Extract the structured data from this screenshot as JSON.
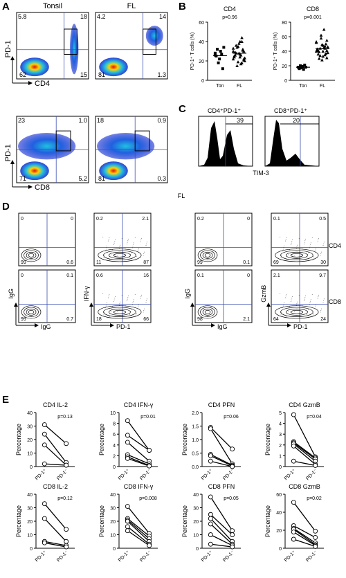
{
  "panels": {
    "A": {
      "label": "A",
      "col_titles": [
        "Tonsil",
        "FL"
      ],
      "plots": [
        {
          "name": "tonsil-cd4",
          "y": "PD-1",
          "x": "CD4",
          "q": [
            "5.8",
            "18",
            "62",
            "15"
          ]
        },
        {
          "name": "fl-cd4",
          "y": "",
          "x": "",
          "q": [
            "4.2",
            "14",
            "81",
            "1.3"
          ]
        },
        {
          "name": "tonsil-cd8",
          "y": "PD-1",
          "x": "CD8",
          "q": [
            "23",
            "1.0",
            "71",
            "5.2"
          ]
        },
        {
          "name": "fl-cd8",
          "y": "",
          "x": "",
          "q": [
            "18",
            "0.9",
            "81",
            "0.3"
          ]
        }
      ]
    },
    "B": {
      "label": "B",
      "ylabel": "PD-1⁺ T cells (%)",
      "plots": [
        {
          "title": "CD4",
          "p": "p=0.96",
          "categories": [
            "Ton",
            "FL"
          ],
          "yticks": [
            "0",
            "20",
            "40",
            "60"
          ],
          "ylim": [
            0,
            60
          ],
          "ton": [
            28,
            25,
            32,
            18,
            22,
            30,
            27,
            12,
            34,
            26
          ],
          "fl": [
            30,
            22,
            18,
            40,
            35,
            28,
            24,
            20,
            32,
            26,
            38,
            15,
            29,
            33,
            21,
            44,
            27,
            19,
            36,
            25,
            23,
            31,
            17,
            28,
            34,
            26,
            22,
            30,
            40,
            24
          ]
        },
        {
          "title": "CD8",
          "p": "p=0.001",
          "categories": [
            "Ton",
            "FL"
          ],
          "yticks": [
            "0",
            "20",
            "40",
            "60",
            "80"
          ],
          "ylim": [
            0,
            80
          ],
          "ton": [
            18,
            16,
            20,
            17,
            19,
            15,
            21,
            18
          ],
          "fl": [
            40,
            55,
            35,
            48,
            62,
            30,
            42,
            38,
            50,
            45,
            28,
            44,
            36,
            52,
            41,
            47,
            33,
            58,
            39,
            43,
            46,
            37,
            70,
            49,
            34,
            41,
            53,
            31,
            44,
            40
          ]
        }
      ]
    },
    "C": {
      "label": "C",
      "titles": [
        "CD4⁺PD-1⁺",
        "CD8⁺PD-1⁺"
      ],
      "values": [
        "39",
        "20"
      ],
      "xlabel": "TIM-3"
    },
    "D": {
      "label": "D",
      "title": "FL",
      "row_labels": [
        "CD4",
        "CD8"
      ],
      "plots": [
        {
          "q": [
            "0",
            "0",
            "99",
            "0.6"
          ],
          "y": "",
          "x": ""
        },
        {
          "q": [
            "0.2",
            "2.1",
            "11",
            "87"
          ],
          "y": "",
          "x": ""
        },
        {
          "q": [
            "0.2",
            "0",
            "99",
            "0.1"
          ],
          "y": "",
          "x": ""
        },
        {
          "q": [
            "0.1",
            "0.5",
            "69",
            "30"
          ],
          "y": "",
          "x": ""
        },
        {
          "q": [
            "0",
            "0.1",
            "99",
            "0.7"
          ],
          "y": "IgG",
          "x": "IgG"
        },
        {
          "q": [
            "0.6",
            "16",
            "18",
            "66"
          ],
          "y": "IFN-γ",
          "x": "PD-1"
        },
        {
          "q": [
            "0.1",
            "0",
            "98",
            "2.1"
          ],
          "y": "IgG",
          "x": "IgG"
        },
        {
          "q": [
            "2.1",
            "9.7",
            "64",
            "24"
          ],
          "y": "GzmB",
          "x": "PD-1"
        }
      ]
    },
    "E": {
      "label": "E",
      "ylabel": "Percentage",
      "xcats": [
        "PD-1⁺",
        "PD-1⁻"
      ],
      "plots": [
        {
          "title": "CD4 IL-2",
          "p": "p=0.13",
          "yticks": [
            "0",
            "10",
            "20",
            "30",
            "40"
          ],
          "ylim": [
            0,
            40
          ],
          "pairs": [
            [
              31,
              17
            ],
            [
              24,
              3
            ],
            [
              16,
              1
            ],
            [
              2,
              1
            ]
          ]
        },
        {
          "title": "CD4 IFN-γ",
          "p": "p=0.01",
          "yticks": [
            "0",
            "2",
            "4",
            "6",
            "8",
            "10"
          ],
          "ylim": [
            0,
            10
          ],
          "pairs": [
            [
              8.5,
              3
            ],
            [
              5.8,
              3
            ],
            [
              4.5,
              1
            ],
            [
              2.2,
              0.5
            ],
            [
              1.8,
              0.2
            ],
            [
              1.5,
              0.1
            ]
          ]
        },
        {
          "title": "CD4 PFN",
          "p": "p=0.06",
          "yticks": [
            "0.0",
            "0.5",
            "1.0",
            "1.5",
            "2.0"
          ],
          "ylim": [
            0,
            2
          ],
          "pairs": [
            [
              1.45,
              0.65
            ],
            [
              1.4,
              0.1
            ],
            [
              0.45,
              0.05
            ],
            [
              0.4,
              0.02
            ],
            [
              0.2,
              0.0
            ]
          ]
        },
        {
          "title": "CD4 GzmB",
          "p": "p=0.04",
          "yticks": [
            "0",
            "1",
            "2",
            "3",
            "4",
            "5"
          ],
          "ylim": [
            0,
            5
          ],
          "pairs": [
            [
              4.8,
              0.9
            ],
            [
              2.3,
              0.8
            ],
            [
              2.2,
              0.7
            ],
            [
              2.1,
              0.5
            ],
            [
              1.9,
              0.2
            ],
            [
              0.5,
              0.1
            ]
          ]
        },
        {
          "title": "CD8 IL-2",
          "p": "p=0.12",
          "yticks": [
            "0",
            "10",
            "20",
            "30",
            "40"
          ],
          "ylim": [
            0,
            40
          ],
          "pairs": [
            [
              33,
              14
            ],
            [
              22,
              5
            ],
            [
              5,
              2
            ],
            [
              4,
              1
            ]
          ]
        },
        {
          "title": "CD8 IFN-γ",
          "p": "p=0.008",
          "yticks": [
            "0",
            "10",
            "20",
            "30",
            "40"
          ],
          "ylim": [
            0,
            40
          ],
          "pairs": [
            [
              31,
              11
            ],
            [
              22,
              9
            ],
            [
              21,
              7
            ],
            [
              20,
              5
            ],
            [
              16,
              3
            ],
            [
              13,
              2
            ]
          ]
        },
        {
          "title": "CD8 PFN",
          "p": "p=0.05",
          "yticks": [
            "0",
            "10",
            "20",
            "30",
            "40"
          ],
          "ylim": [
            0,
            40
          ],
          "pairs": [
            [
              38,
              13
            ],
            [
              25,
              10
            ],
            [
              22,
              5
            ],
            [
              18,
              3
            ],
            [
              10,
              2
            ],
            [
              3,
              1
            ]
          ]
        },
        {
          "title": "CD8 GzmB",
          "p": "p=0.02",
          "yticks": [
            "0",
            "20",
            "40",
            "60"
          ],
          "ylim": [
            0,
            60
          ],
          "pairs": [
            [
              51,
              19
            ],
            [
              25,
              12
            ],
            [
              22,
              6
            ],
            [
              21,
              4
            ],
            [
              18,
              3
            ],
            [
              10,
              2
            ]
          ]
        }
      ]
    }
  },
  "colors": {
    "quad_line": "#3a4fb0",
    "density_low": "#1a2fd0",
    "density_mid": "#20c0e0",
    "density_high": "#ffd000",
    "density_peak": "#e01010"
  }
}
